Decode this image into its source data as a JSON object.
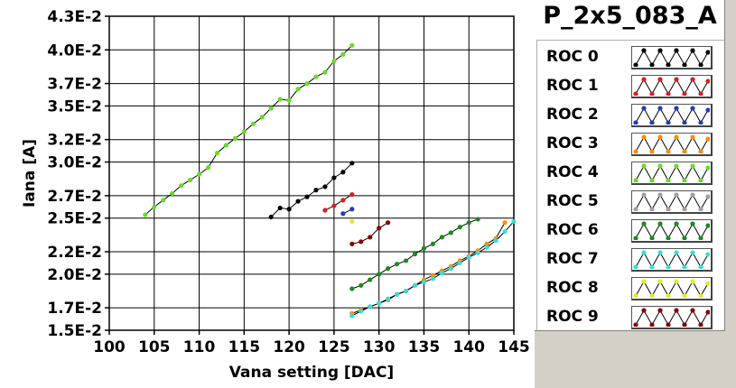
{
  "chart_data": {
    "type": "line",
    "title": "P_2x5_083_A",
    "xlabel": "Vana setting [DAC]",
    "ylabel": "Iana [A]",
    "xlim": [
      100,
      145
    ],
    "ylim": [
      0.015,
      0.043
    ],
    "x_ticks": [
      100,
      105,
      110,
      115,
      120,
      125,
      130,
      135,
      140,
      145
    ],
    "x_tick_labels": [
      "100",
      "105",
      "110",
      "115",
      "120",
      "125",
      "130",
      "135",
      "140",
      "145"
    ],
    "y_ticks": [
      0.015,
      0.017,
      0.02,
      0.022,
      0.025,
      0.027,
      0.03,
      0.032,
      0.035,
      0.037,
      0.04,
      0.043
    ],
    "y_tick_labels": [
      "1.5E-2",
      "1.7E-2",
      "2.0E-2",
      "2.2E-2",
      "2.5E-2",
      "2.7E-2",
      "3.0E-2",
      "3.2E-2",
      "3.5E-2",
      "3.7E-2",
      "4.0E-2",
      "4.3E-2"
    ],
    "grid": true,
    "legend_position": "right",
    "series": [
      {
        "name": "ROC 0",
        "color": "#000000",
        "x": [
          118,
          119,
          120,
          121,
          122,
          123,
          124,
          125,
          126,
          127
        ],
        "y": [
          0.0251,
          0.0259,
          0.0258,
          0.0265,
          0.0269,
          0.0275,
          0.0278,
          0.0286,
          0.0291,
          0.0299
        ]
      },
      {
        "name": "ROC 1",
        "color": "#d81e1e",
        "x": [
          124,
          125,
          126,
          127
        ],
        "y": [
          0.0257,
          0.0261,
          0.0266,
          0.0271
        ]
      },
      {
        "name": "ROC 2",
        "color": "#1f3fbf",
        "x": [
          126,
          127
        ],
        "y": [
          0.0254,
          0.0258
        ]
      },
      {
        "name": "ROC 3",
        "color": "#ff8c00",
        "x": [
          127,
          128,
          129,
          130,
          131,
          132,
          133,
          134,
          135,
          136,
          137,
          138,
          139,
          140,
          141,
          142,
          143,
          144
        ],
        "y": [
          0.0165,
          0.0168,
          0.0171,
          0.0174,
          0.0177,
          0.0182,
          0.0185,
          0.019,
          0.0195,
          0.0199,
          0.0203,
          0.0207,
          0.0212,
          0.0216,
          0.0221,
          0.0227,
          0.0232,
          0.0246
        ]
      },
      {
        "name": "ROC 4",
        "color": "#66dd22",
        "x": [
          104,
          105,
          106,
          107,
          108,
          109,
          110,
          111,
          112,
          113,
          114,
          115,
          116,
          117,
          118,
          119,
          120,
          121,
          122,
          123,
          124,
          125,
          126,
          127
        ],
        "y": [
          0.0253,
          0.026,
          0.0266,
          0.0272,
          0.0279,
          0.0284,
          0.0289,
          0.0295,
          0.0308,
          0.0315,
          0.0321,
          0.0327,
          0.0334,
          0.034,
          0.0348,
          0.0356,
          0.0355,
          0.0365,
          0.037,
          0.0376,
          0.038,
          0.039,
          0.0396,
          0.0404
        ]
      },
      {
        "name": "ROC 5",
        "color": "#a0a0a0",
        "x": [],
        "y": []
      },
      {
        "name": "ROC 6",
        "color": "#1d8a1d",
        "x": [
          127,
          128,
          129,
          130,
          131,
          132,
          133,
          134,
          135,
          136,
          137,
          138,
          139,
          140,
          141
        ],
        "y": [
          0.0187,
          0.019,
          0.0195,
          0.02,
          0.0205,
          0.0209,
          0.0212,
          0.0218,
          0.0223,
          0.0227,
          0.0233,
          0.0237,
          0.0242,
          0.0246,
          0.0249
        ]
      },
      {
        "name": "ROC 7",
        "color": "#33dddd",
        "x": [
          127,
          128,
          129,
          130,
          131,
          132,
          133,
          134,
          135,
          136,
          137,
          138,
          139,
          140,
          141,
          142,
          143,
          144,
          145
        ],
        "y": [
          0.0163,
          0.0167,
          0.0171,
          0.0174,
          0.0178,
          0.0182,
          0.0185,
          0.019,
          0.0193,
          0.0196,
          0.0201,
          0.0205,
          0.021,
          0.0215,
          0.0219,
          0.0224,
          0.023,
          0.0238,
          0.0247
        ]
      },
      {
        "name": "ROC 8",
        "color": "#e8e820",
        "x": [
          127
        ],
        "y": [
          0.0247
        ]
      },
      {
        "name": "ROC 9",
        "color": "#8b0000",
        "x": [
          127,
          128,
          129,
          130,
          131
        ],
        "y": [
          0.0227,
          0.0229,
          0.0233,
          0.0241,
          0.0246
        ]
      }
    ]
  }
}
